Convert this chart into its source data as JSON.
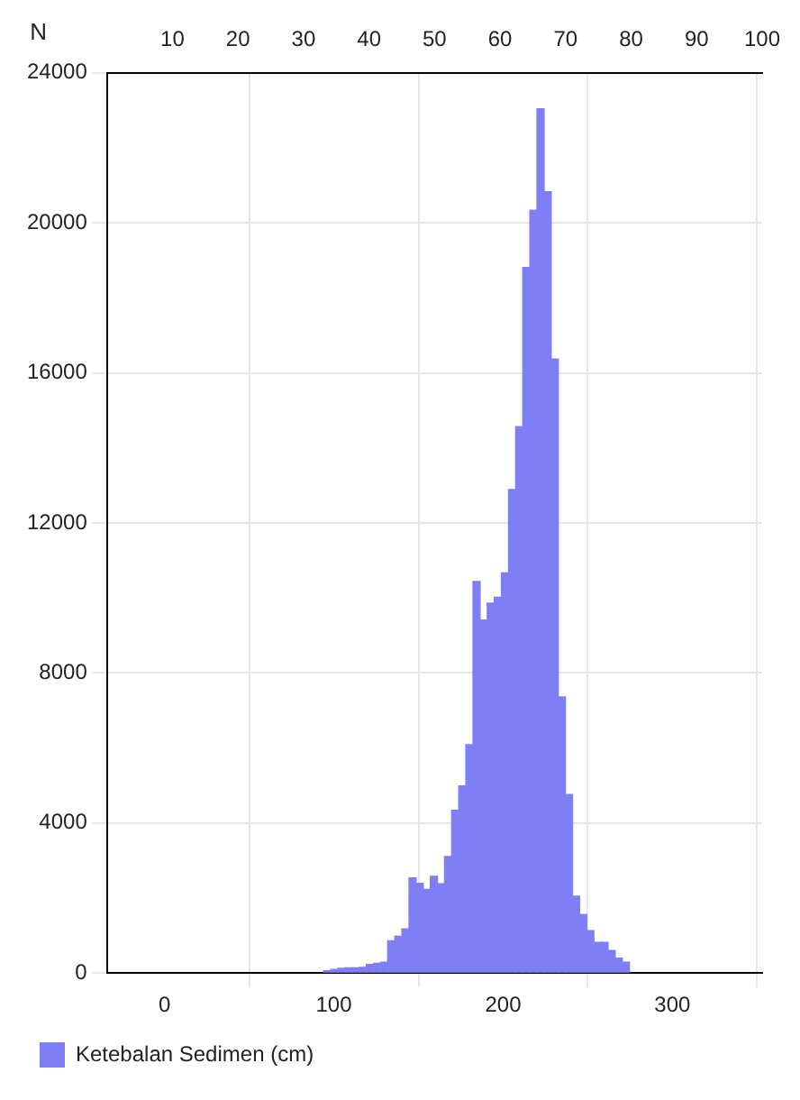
{
  "chart_data": {
    "type": "histogram",
    "ylabel": "N",
    "bins": [
      94,
      98.2,
      102.4,
      106.6,
      110.8,
      115,
      119.2,
      123.4,
      127.6,
      131.8,
      136,
      140.2,
      144.4,
      148.6,
      152.8,
      157,
      161.2,
      165.4,
      169.6,
      173.8,
      178,
      182.2,
      186.4,
      190.6,
      194.8,
      199,
      203.2,
      207.4,
      211.6,
      215.8,
      220,
      224.2,
      228.4,
      232.6,
      236.8,
      241,
      245.2,
      249.4,
      253.6,
      257.8,
      262,
      266.2,
      270.4,
      274.6
    ],
    "series": [
      {
        "name": "Ketebalan Sedimen (cm)",
        "color": "#7f7ff5",
        "values": [
          60,
          100,
          130,
          140,
          140,
          150,
          230,
          260,
          290,
          860,
          980,
          1180,
          2540,
          2390,
          2230,
          2580,
          2380,
          3110,
          4340,
          4990,
          6090,
          10440,
          9410,
          9860,
          10020,
          10670,
          12890,
          14570,
          18810,
          20340,
          23040,
          20830,
          16370,
          7360,
          4760,
          2050,
          1560,
          1130,
          820,
          820,
          600,
          400,
          290
        ]
      }
    ],
    "xlim": [
      -34,
      353
    ],
    "xticks": [
      0,
      100,
      200,
      300
    ],
    "ylim": [
      0,
      24000
    ],
    "yticks": [
      0,
      4000,
      8000,
      12000,
      16000,
      20000,
      24000
    ],
    "x2lim": [
      0,
      100
    ],
    "x2ticks": [
      10,
      20,
      30,
      40,
      50,
      60,
      70,
      80,
      90,
      100
    ],
    "grid": true,
    "legend": "bottom left"
  }
}
